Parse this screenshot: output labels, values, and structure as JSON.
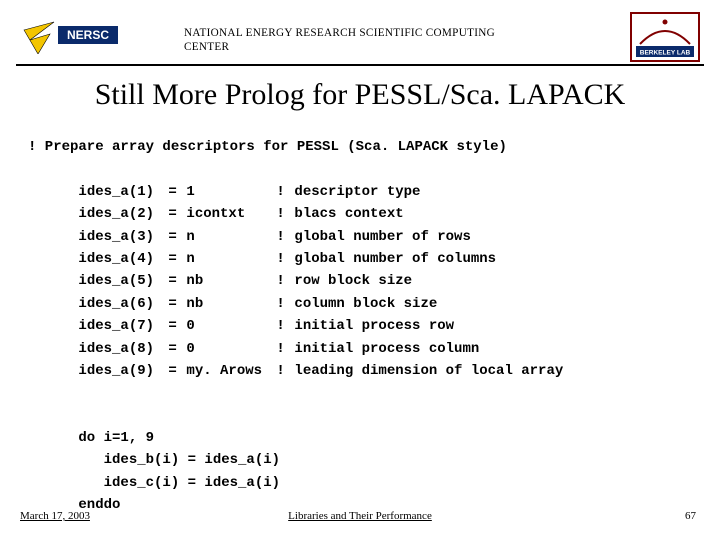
{
  "header": {
    "org_line1": "NATIONAL ENERGY RESEARCH SCIENTIFIC COMPUTING",
    "org_line2": "CENTER",
    "logo_left_label": "NERSC",
    "logo_right_label": "BERKELEY LAB"
  },
  "title": "Still More Prolog for PESSL/Sca. LAPACK",
  "code": {
    "heading": "! Prepare array descriptors for PESSL (Sca. LAPACK style)",
    "rows": [
      {
        "idx": "ides_a(1)",
        "eq": "=",
        "val": "1",
        "bang": "!",
        "comment": "descriptor type"
      },
      {
        "idx": "ides_a(2)",
        "eq": "=",
        "val": "icontxt",
        "bang": "!",
        "comment": "blacs context"
      },
      {
        "idx": "ides_a(3)",
        "eq": "=",
        "val": "n",
        "bang": "!",
        "comment": "global number of rows"
      },
      {
        "idx": "ides_a(4)",
        "eq": "=",
        "val": "n",
        "bang": "!",
        "comment": "global number of columns"
      },
      {
        "idx": "ides_a(5)",
        "eq": "=",
        "val": "nb",
        "bang": "!",
        "comment": "row block size"
      },
      {
        "idx": "ides_a(6)",
        "eq": "=",
        "val": "nb",
        "bang": "!",
        "comment": "column block size"
      },
      {
        "idx": "ides_a(7)",
        "eq": "=",
        "val": "0",
        "bang": "!",
        "comment": "initial process row"
      },
      {
        "idx": "ides_a(8)",
        "eq": "=",
        "val": "0",
        "bang": "!",
        "comment": "initial process column"
      },
      {
        "idx": "ides_a(9)",
        "eq": "=",
        "val": "my. Arows",
        "bang": "!",
        "comment": "leading dimension of local array"
      }
    ],
    "loop": [
      "do i=1, 9",
      "   ides_b(i) = ides_a(i)",
      "   ides_c(i) = ides_a(i)",
      "enddo"
    ]
  },
  "footer": {
    "date": "March 17, 2003",
    "center": "Libraries and Their Performance",
    "page": "67"
  },
  "style": {
    "logo_bg": "#0a2a6b",
    "bolt": "#f3c500",
    "lab_outline": "#800000",
    "lab_fill": "#e5d8c3"
  }
}
